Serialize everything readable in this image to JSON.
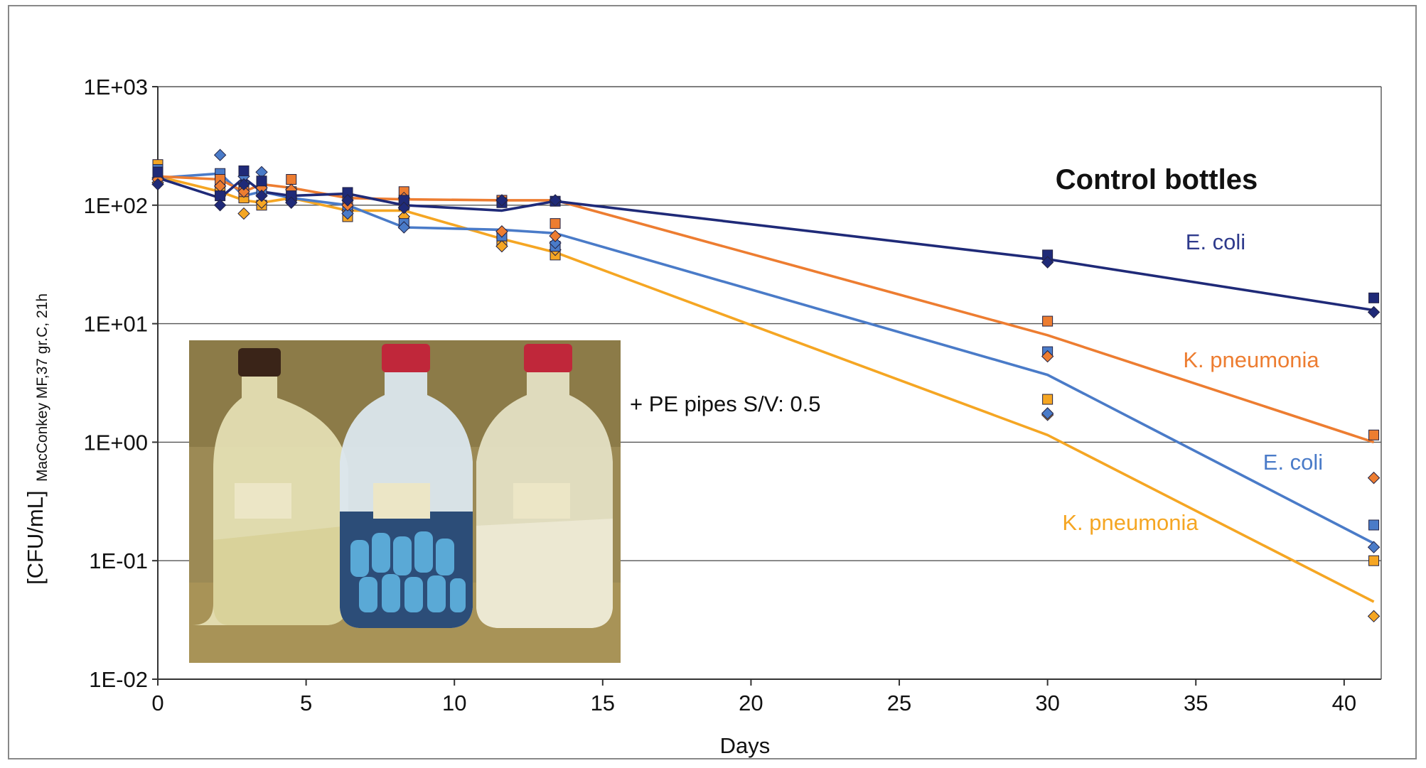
{
  "chart_data": {
    "type": "line",
    "y_scale": "log",
    "title": "Control bottles",
    "xlabel": "Days",
    "ylabel": "[CFU/mL]",
    "ylabel_subscript": "MacConkey MF,37 gr.C, 21h",
    "xlim": [
      0,
      41
    ],
    "ylim": [
      0.01,
      1000
    ],
    "x_ticks": [
      0,
      5,
      10,
      15,
      20,
      25,
      30,
      35,
      40
    ],
    "x_tick_labels": [
      "0",
      "5",
      "10",
      "15",
      "20",
      "25",
      "30",
      "35",
      "40"
    ],
    "y_ticks": [
      0.01,
      0.1,
      1,
      10,
      100,
      1000
    ],
    "y_tick_labels": [
      "1E-02",
      "1E-01",
      "1E+00",
      "1E+01",
      "1E+02",
      "1E+03"
    ],
    "grid": "horizontal",
    "annotation": "+ PE pipes S/V: 0.5",
    "series": [
      {
        "name": "E. coli",
        "color": "#1f2a78",
        "line": {
          "x": [
            0,
            2.1,
            2.9,
            3.5,
            4.5,
            6.4,
            8.3,
            11.6,
            13.4,
            30,
            41
          ],
          "y": [
            170,
            115,
            170,
            130,
            120,
            125,
            100,
            90,
            108,
            35,
            13
          ]
        },
        "squares": {
          "x": [
            0,
            2.1,
            2.9,
            3.5,
            4.5,
            6.4,
            8.3,
            11.6,
            13.4,
            30,
            41
          ],
          "y": [
            190,
            120,
            195,
            160,
            120,
            128,
            110,
            105,
            108,
            38,
            16.5
          ]
        },
        "diamonds": {
          "x": [
            0,
            2.1,
            2.9,
            3.5,
            4.5,
            6.4,
            8.3,
            11.6,
            13.4,
            30,
            41
          ],
          "y": [
            150,
            100,
            150,
            120,
            105,
            110,
            95,
            110,
            110,
            33,
            12.5
          ]
        }
      },
      {
        "name": "K. pneumonia",
        "color": "#ed7d31",
        "line": {
          "x": [
            0,
            2.1,
            2.9,
            3.5,
            4.5,
            6.4,
            8.3,
            11.6,
            13.4,
            30,
            41
          ],
          "y": [
            175,
            165,
            130,
            150,
            140,
            115,
            112,
            110,
            110,
            8,
            1.0
          ]
        },
        "squares": {
          "x": [
            0,
            2.1,
            2.9,
            3.5,
            4.5,
            6.4,
            8.3,
            11.6,
            13.4,
            30,
            41
          ],
          "y": [
            190,
            165,
            130,
            150,
            165,
            110,
            130,
            110,
            70,
            10.5,
            1.15
          ]
        },
        "diamonds": {
          "x": [
            0,
            2.1,
            2.9,
            3.5,
            4.5,
            6.4,
            8.3,
            11.6,
            13.4,
            30,
            41
          ],
          "y": [
            165,
            145,
            130,
            140,
            135,
            100,
            115,
            60,
            55,
            5.3,
            0.5
          ]
        }
      },
      {
        "name": "E. coli",
        "color": "#4a7bc8",
        "line": {
          "x": [
            0,
            2.1,
            2.9,
            3.5,
            4.5,
            6.4,
            8.3,
            11.6,
            13.4,
            30,
            41
          ],
          "y": [
            170,
            185,
            120,
            130,
            115,
            100,
            65,
            62,
            58,
            3.7,
            0.14
          ]
        },
        "squares": {
          "x": [
            0,
            2.1,
            2.9,
            3.5,
            4.5,
            6.4,
            8.3,
            11.6,
            13.4,
            30,
            41
          ],
          "y": [
            200,
            185,
            145,
            130,
            115,
            100,
            70,
            55,
            45,
            5.8,
            0.2
          ]
        },
        "diamonds": {
          "x": [
            0,
            2.1,
            2.9,
            3.5,
            4.5,
            6.4,
            8.3,
            11.6,
            13.4,
            30,
            41
          ],
          "y": [
            170,
            265,
            175,
            190,
            115,
            85,
            65,
            60,
            48,
            1.75,
            0.13
          ]
        }
      },
      {
        "name": "K. pneumonia",
        "color": "#f5a623",
        "line": {
          "x": [
            0,
            2.1,
            2.9,
            3.5,
            4.5,
            6.4,
            8.3,
            11.6,
            13.4,
            30,
            41
          ],
          "y": [
            175,
            130,
            110,
            105,
            115,
            90,
            90,
            52,
            40,
            1.15,
            0.045
          ]
        },
        "squares": {
          "x": [
            0,
            2.1,
            2.9,
            3.5,
            4.5,
            6.4,
            8.3,
            11.6,
            13.4,
            30,
            41
          ],
          "y": [
            220,
            135,
            115,
            100,
            130,
            80,
            100,
            50,
            38,
            2.3,
            0.1
          ]
        },
        "diamonds": {
          "x": [
            0,
            2.1,
            2.9,
            3.5,
            4.5,
            6.4,
            8.3,
            11.6,
            13.4,
            30,
            41
          ],
          "y": [
            155,
            120,
            85,
            105,
            110,
            90,
            80,
            45,
            42,
            1.7,
            0.034
          ]
        }
      }
    ],
    "series_labels": [
      "E. coli",
      "K. pneumonia",
      "E. coli",
      "K. pneumonia"
    ]
  }
}
